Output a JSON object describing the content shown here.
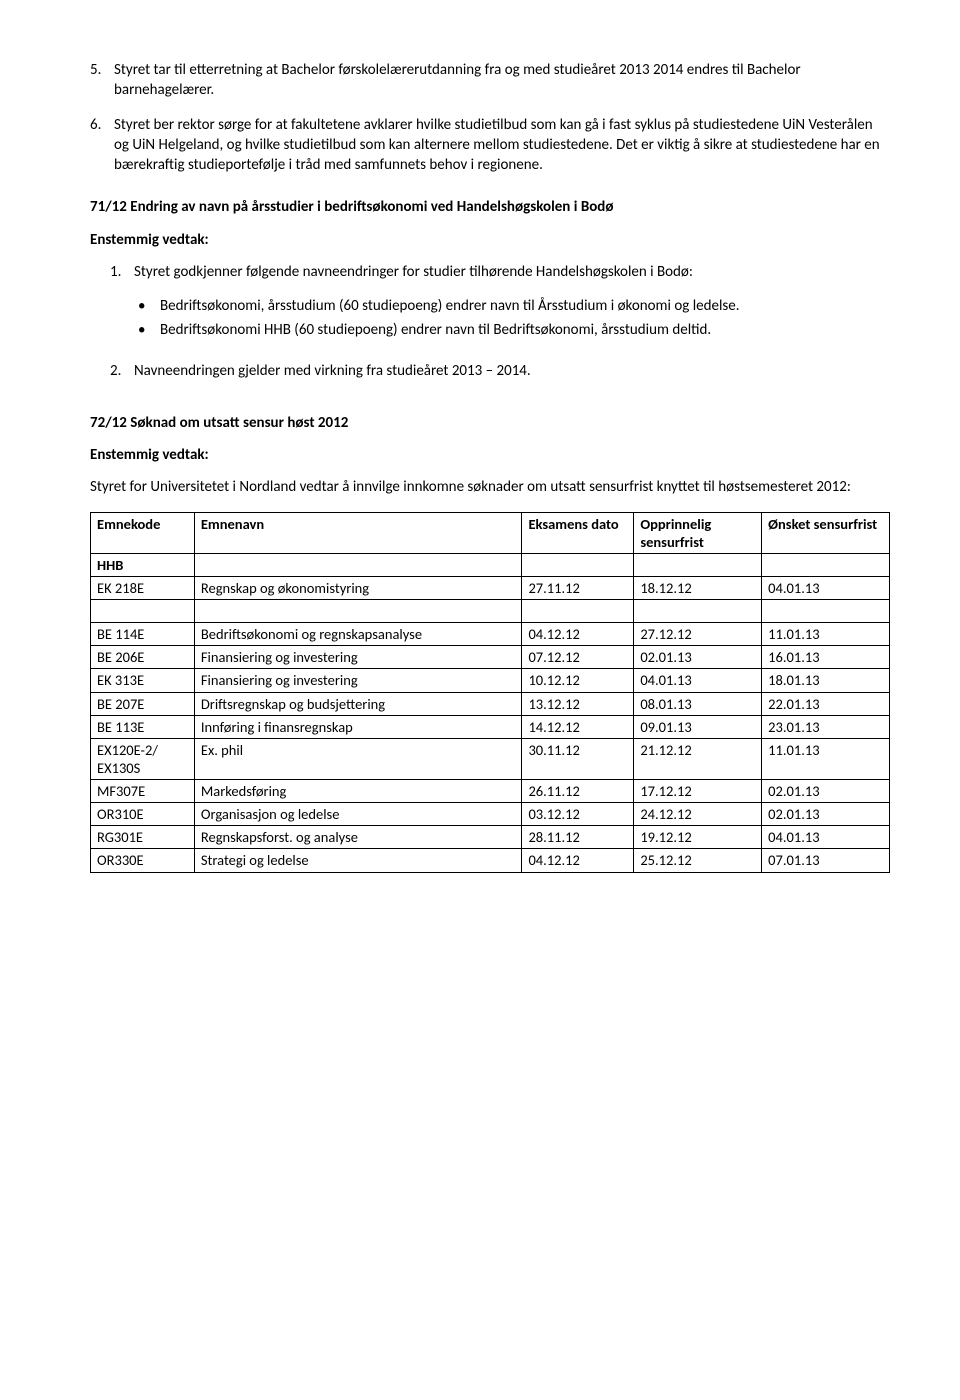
{
  "item5": {
    "num": "5.",
    "text": "Styret tar til etterretning at Bachelor førskolelærerutdanning fra og med studieåret 2013 2014 endres til Bachelor barnehagelærer."
  },
  "item6": {
    "num": "6.",
    "text": "Styret ber rektor sørge for at fakultetene avklarer hvilke studietilbud som kan gå i fast syklus på studiestedene UiN Vesterålen og UiN Helgeland, og hvilke studietilbud som kan alternere mellom studiestedene. Det er viktig å sikre at studiestedene har en bærekraftig studieportefølje i tråd med samfunnets behov i regionene."
  },
  "sec71": {
    "title": "71/12 Endring av navn på årsstudier i bedriftsøkonomi ved Handelshøgskolen i Bodø",
    "vedtak": "Enstemmig vedtak:",
    "item1_num": "1.",
    "item1_text": "Styret godkjenner følgende navneendringer for studier tilhørende Handelshøgskolen i Bodø:",
    "b1": "Bedriftsøkonomi, årsstudium (60 studiepoeng) endrer navn til Årsstudium i økonomi og ledelse.",
    "b2": "Bedriftsøkonomi HHB (60 studiepoeng) endrer navn til Bedriftsøkonomi, årsstudium deltid.",
    "item2_num": "2.",
    "item2_text": "Navneendringen gjelder med virkning fra studieåret 2013 – 2014."
  },
  "sec72": {
    "title": "72/12 Søknad om utsatt sensur høst 2012",
    "vedtak": "Enstemmig vedtak:",
    "para": "Styret for Universitetet i Nordland vedtar å innvilge innkomne søknader om utsatt sensurfrist knyttet til høstsemesteret 2012:"
  },
  "table": {
    "headers": {
      "c1": "Emnekode",
      "c2": "Emnenavn",
      "c3": "Eksamens dato",
      "c4": "Opprinnelig sensurfrist",
      "c5": "Ønsket sensurfrist"
    },
    "hhb": "HHB",
    "rows": [
      {
        "c1": "EK 218E",
        "c2": "Regnskap og økonomistyring",
        "c3": "27.11.12",
        "c4": "18.12.12",
        "c5": "04.01.13"
      },
      {
        "c1": "BE 114E",
        "c2": "Bedriftsøkonomi og regnskapsanalyse",
        "c3": "04.12.12",
        "c4": "27.12.12",
        "c5": "11.01.13"
      },
      {
        "c1": "BE 206E",
        "c2": "Finansiering og investering",
        "c3": "07.12.12",
        "c4": "02.01.13",
        "c5": "16.01.13"
      },
      {
        "c1": "EK 313E",
        "c2": "Finansiering og investering",
        "c3": "10.12.12",
        "c4": "04.01.13",
        "c5": "18.01.13"
      },
      {
        "c1": "BE 207E",
        "c2": "Driftsregnskap og budsjettering",
        "c3": "13.12.12",
        "c4": "08.01.13",
        "c5": "22.01.13"
      },
      {
        "c1": "BE 113E",
        "c2": "Innføring i finansregnskap",
        "c3": "14.12.12",
        "c4": "09.01.13",
        "c5": "23.01.13"
      },
      {
        "c1": "EX120E-2/ EX130S",
        "c2": "Ex. phil",
        "c3": "30.11.12",
        "c4": "21.12.12",
        "c5": "11.01.13"
      },
      {
        "c1": "MF307E",
        "c2": "Markedsføring",
        "c3": "26.11.12",
        "c4": "17.12.12",
        "c5": "02.01.13"
      },
      {
        "c1": "OR310E",
        "c2": "Organisasjon og ledelse",
        "c3": "03.12.12",
        "c4": "24.12.12",
        "c5": "02.01.13"
      },
      {
        "c1": "RG301E",
        "c2": "Regnskapsforst. og analyse",
        "c3": "28.11.12",
        "c4": "19.12.12",
        "c5": "04.01.13"
      },
      {
        "c1": "OR330E",
        "c2": "Strategi og ledelse",
        "c3": "04.12.12",
        "c4": "25.12.12",
        "c5": "07.01.13"
      }
    ]
  }
}
